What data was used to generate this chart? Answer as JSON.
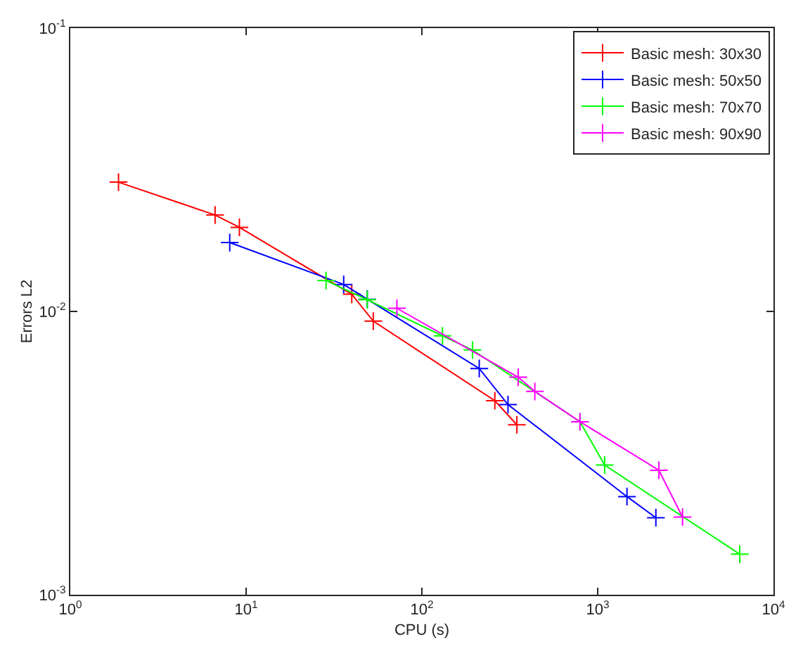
{
  "chart_data": {
    "type": "line",
    "xlabel": "CPU (s)",
    "ylabel": "Errors L2",
    "log": "xy",
    "marker": "cross",
    "line_style": "solid",
    "legend": "top right",
    "xlim": [
      1,
      10000
    ],
    "ylim": [
      0.001,
      0.1
    ],
    "xticks": [
      {
        "value": 1,
        "label": "10$^{0}$"
      },
      {
        "value": 10,
        "label": "10$^{1}$"
      },
      {
        "value": 100,
        "label": "10$^{2}$"
      },
      {
        "value": 1000,
        "label": "10$^{3}$"
      },
      {
        "value": 10000,
        "label": "10$^{4}$"
      }
    ],
    "yticks": [
      {
        "value": 0.001,
        "label": "10$^{-3}$"
      },
      {
        "value": 0.01,
        "label": "10$^{-2}$"
      },
      {
        "value": 0.1,
        "label": "10$^{-1}$"
      }
    ],
    "series": [
      {
        "name": "Basic mesh: 30x30",
        "color": "#ff0000",
        "x": [
          1.88,
          6.66,
          9.16,
          39.9,
          52.9,
          260,
          347
        ],
        "values": [
          0.0286,
          0.0219,
          0.0198,
          0.0115,
          0.00924,
          0.00484,
          0.00398
        ]
      },
      {
        "name": "Basic mesh: 50x50",
        "color": "#0000ff",
        "x": [
          8.07,
          35.9,
          48.9,
          212,
          309,
          1468,
          2143
        ],
        "values": [
          0.0175,
          0.01245,
          0.01104,
          0.00629,
          0.00469,
          0.00222,
          0.00187
        ]
      },
      {
        "name": "Basic mesh: 70x70",
        "color": "#00ff00",
        "x": [
          28.5,
          48.9,
          131,
          194,
          793,
          1096,
          6430
        ],
        "values": [
          0.01285,
          0.011,
          0.0082,
          0.00731,
          0.00408,
          0.00287,
          0.00139
        ]
      },
      {
        "name": "Basic mesh: 90x90",
        "color": "#ff00ff",
        "x": [
          72.1,
          353,
          439,
          793,
          2230,
          3040
        ],
        "values": [
          0.01026,
          0.00586,
          0.00522,
          0.00408,
          0.00275,
          0.00188
        ]
      }
    ]
  }
}
